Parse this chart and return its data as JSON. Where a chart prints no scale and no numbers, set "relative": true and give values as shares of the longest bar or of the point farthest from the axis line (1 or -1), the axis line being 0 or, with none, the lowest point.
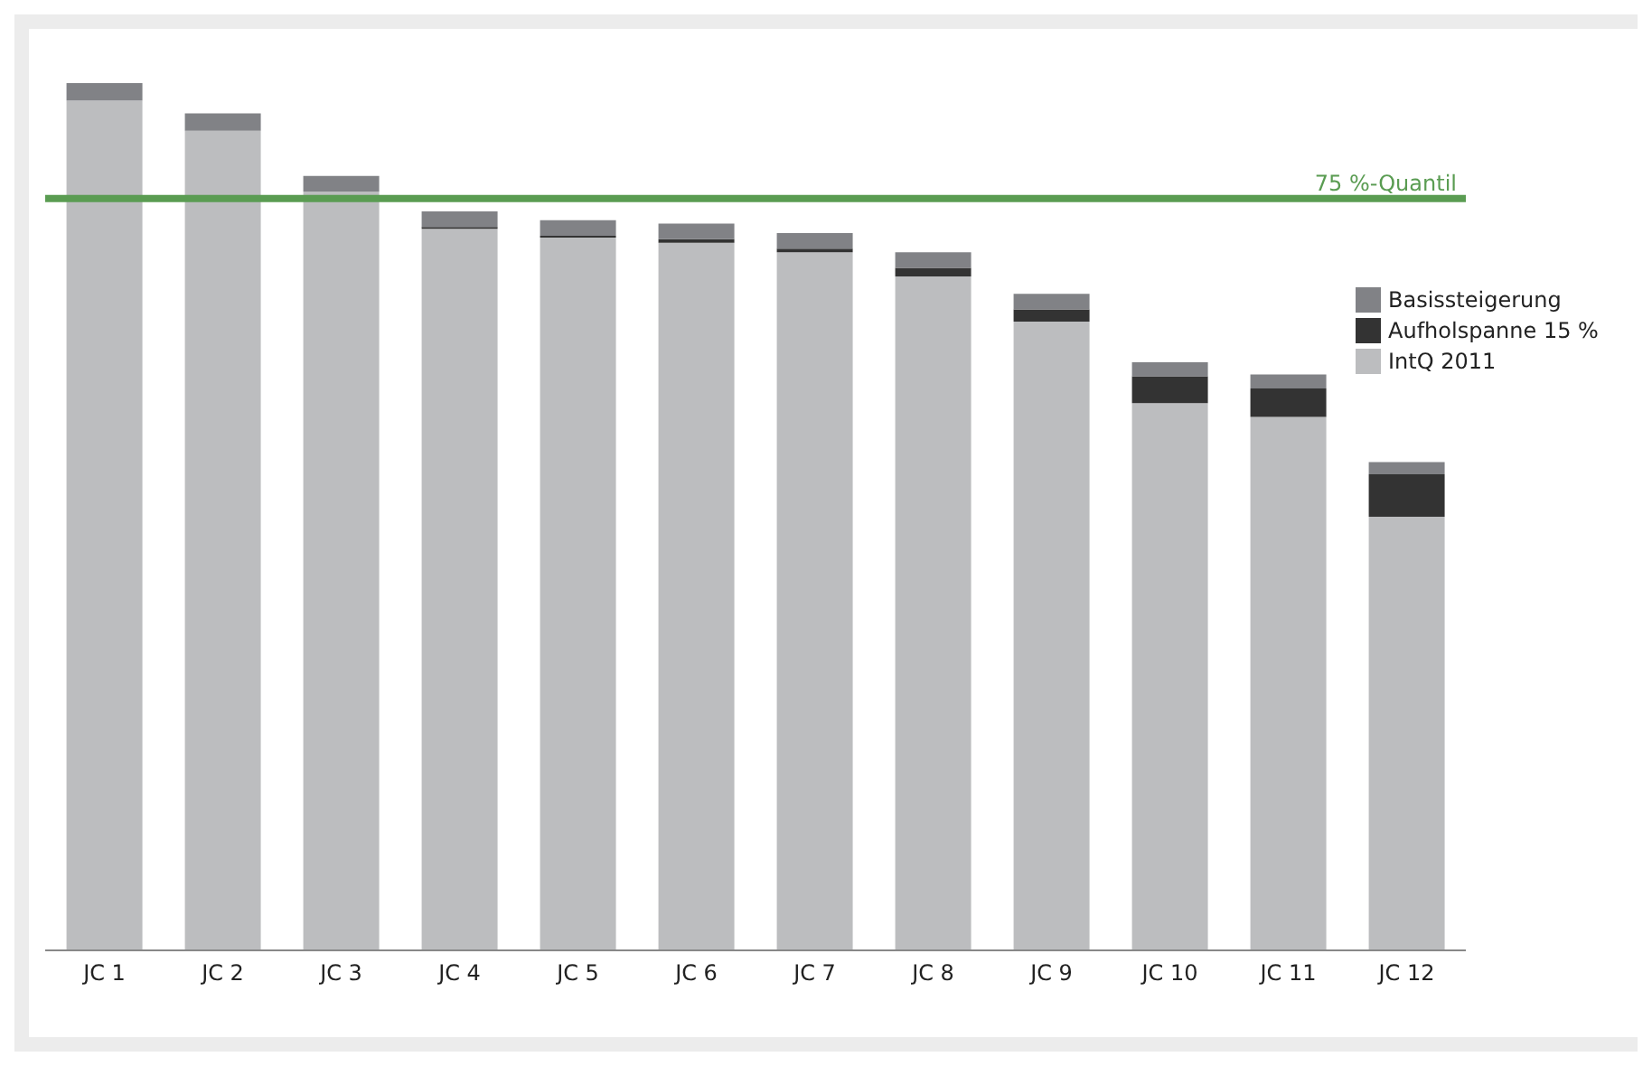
{
  "chart_data": {
    "type": "bar",
    "stacked": true,
    "relative": true,
    "legend": "right",
    "categories": [
      "JC 1",
      "JC 2",
      "JC 3",
      "JC 4",
      "JC 5",
      "JC 6",
      "JC 7",
      "JC 8",
      "JC 9",
      "JC 10",
      "JC 11",
      "JC 12"
    ],
    "series": [
      {
        "name": "IntQ 2011",
        "color": "#bcbdbf",
        "values": [
          0.98,
          0.945,
          0.875,
          0.832,
          0.822,
          0.816,
          0.805,
          0.777,
          0.725,
          0.631,
          0.615,
          0.5
        ]
      },
      {
        "name": "Aufholspanne 15 %",
        "color": "#333333",
        "values": [
          0,
          0,
          0,
          0.002,
          0.002,
          0.004,
          0.004,
          0.01,
          0.014,
          0.031,
          0.033,
          0.049
        ]
      },
      {
        "name": "Basissteigerung",
        "color": "#818286",
        "values": [
          0.02,
          0.02,
          0.018,
          0.018,
          0.018,
          0.018,
          0.018,
          0.018,
          0.018,
          0.016,
          0.016,
          0.014
        ]
      }
    ],
    "ref_lines": [
      {
        "axis": "y",
        "value": 0.867,
        "label": "75 %-Quantil",
        "color": "#5a9c52"
      }
    ]
  }
}
